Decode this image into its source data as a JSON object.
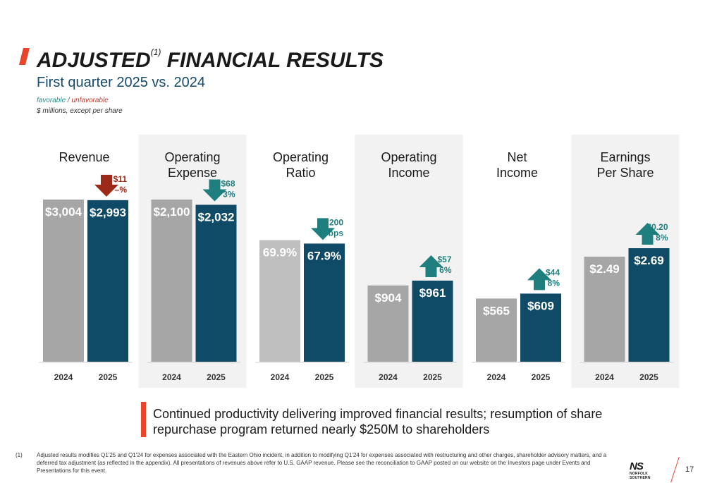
{
  "title": {
    "main": "ADJUSTED",
    "sup": "(1)",
    "rest": " FINANCIAL RESULTS"
  },
  "subtitle": "First quarter 2025 vs. 2024",
  "legend": {
    "favorable": "favorable",
    "separator": " / ",
    "unfavorable": "unfavorable"
  },
  "units": "$ millions, except per share",
  "colors": {
    "bar_2024": "#a6a6a6",
    "bar_2024_ratio": "#bfbfbf",
    "bar_2025": "#0f4a66",
    "arrow_favorable": "#1f7f7f",
    "arrow_unfavorable": "#9c2a18",
    "text_favorable": "#1f7f7f",
    "text_unfavorable": "#9c2a18",
    "panel_shade": "#f2f2f2"
  },
  "chart_data": {
    "type": "bar",
    "panels": [
      {
        "title": [
          "Revenue"
        ],
        "categories": [
          "2024",
          "2025"
        ],
        "values": [
          3004,
          2993
        ],
        "labels": [
          "$3,004",
          "$2,993"
        ],
        "change": [
          "$11",
          "–%"
        ],
        "direction": "down",
        "favorable": false,
        "shaded": false
      },
      {
        "title": [
          "Operating",
          "Expense"
        ],
        "categories": [
          "2024",
          "2025"
        ],
        "values": [
          2100,
          2032
        ],
        "labels": [
          "$2,100",
          "$2,032"
        ],
        "change": [
          "$68",
          "3%"
        ],
        "direction": "down",
        "favorable": true,
        "shaded": true
      },
      {
        "title": [
          "Operating",
          "Ratio"
        ],
        "categories": [
          "2024",
          "2025"
        ],
        "values": [
          69.9,
          67.9
        ],
        "labels": [
          "69.9%",
          "67.9%"
        ],
        "change": [
          "200",
          "bps"
        ],
        "direction": "down",
        "favorable": true,
        "shaded": false
      },
      {
        "title": [
          "Operating",
          "Income"
        ],
        "categories": [
          "2024",
          "2025"
        ],
        "values": [
          904,
          961
        ],
        "labels": [
          "$904",
          "$961"
        ],
        "change": [
          "$57",
          "6%"
        ],
        "direction": "up",
        "favorable": true,
        "shaded": true
      },
      {
        "title": [
          "Net",
          "Income"
        ],
        "categories": [
          "2024",
          "2025"
        ],
        "values": [
          565,
          609
        ],
        "labels": [
          "$565",
          "$609"
        ],
        "change": [
          "$44",
          "8%"
        ],
        "direction": "up",
        "favorable": true,
        "shaded": false
      },
      {
        "title": [
          "Earnings",
          "Per Share"
        ],
        "categories": [
          "2024",
          "2025"
        ],
        "values": [
          2.49,
          2.69
        ],
        "labels": [
          "$2.49",
          "$2.69"
        ],
        "change": [
          "$0.20",
          "8%"
        ],
        "direction": "up",
        "favorable": true,
        "shaded": true
      }
    ]
  },
  "callout": "Continued productivity delivering improved financial results; resumption of share repurchase program returned nearly $250M to shareholders",
  "footnote": {
    "mark": "(1)",
    "text": "Adjusted results modifies Q1'25 and Q1'24 for expenses associated with the Eastern Ohio incident, in addition to modifying Q1'24 for expenses associated with restructuring and other charges, shareholder advisory matters, and a deferred tax adjustment (as reflected in the appendix). All presentations of revenues above refer to U.S. GAAP revenue. Please see the reconciliation to GAAP posted on our website on the Investors page under Events and Presentations for this event."
  },
  "logo": {
    "mark": "NS",
    "text": "NORFOLK SOUTHERN"
  },
  "page_number": "17"
}
